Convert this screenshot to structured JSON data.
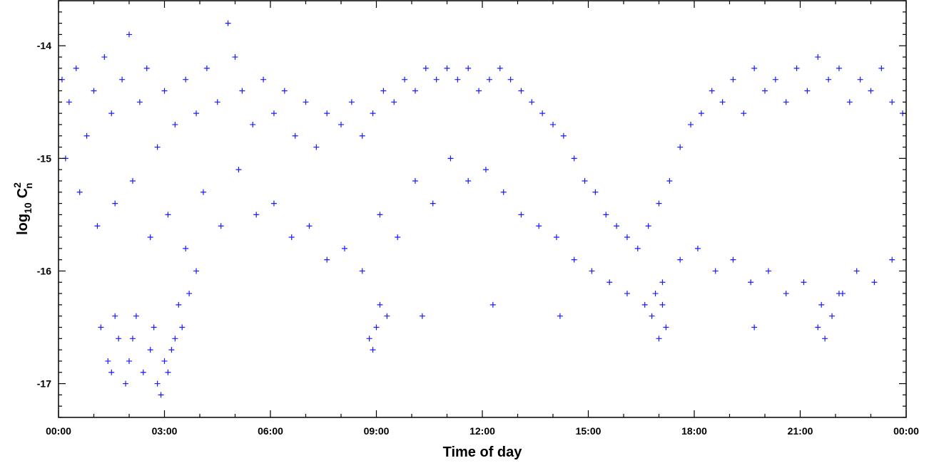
{
  "chart_data": {
    "type": "scatter",
    "title": "",
    "xlabel": "Time of day",
    "ylabel_parts": {
      "base": "log",
      "base_sub": "10",
      "var": "C",
      "var_sup": "2",
      "var_sub": "n"
    },
    "xlim_hours": [
      0,
      24
    ],
    "ylim": [
      -17.3,
      -13.6
    ],
    "x_ticks": [
      {
        "hour": 0,
        "label": "00:00"
      },
      {
        "hour": 3,
        "label": "03:00"
      },
      {
        "hour": 6,
        "label": "06:00"
      },
      {
        "hour": 9,
        "label": "09:00"
      },
      {
        "hour": 12,
        "label": "12:00"
      },
      {
        "hour": 15,
        "label": "15:00"
      },
      {
        "hour": 18,
        "label": "18:00"
      },
      {
        "hour": 21,
        "label": "21:00"
      },
      {
        "hour": 24,
        "label": "00:00"
      }
    ],
    "y_ticks": [
      -14,
      -15,
      -16,
      -17
    ],
    "grid": false,
    "marker": "+",
    "marker_color": "#1a1aff",
    "series": [
      {
        "x_hours": [
          0.1,
          0.3,
          0.5,
          0.8,
          1.0,
          1.3,
          1.5,
          1.8,
          2.0,
          2.3,
          2.5,
          2.8,
          3.0,
          3.3,
          3.6,
          3.9,
          4.2,
          4.5,
          4.8,
          5.0,
          5.2,
          5.5,
          5.8,
          6.1,
          6.4,
          6.7,
          7.0,
          7.3,
          7.6,
          8.0,
          8.3,
          8.6,
          8.9,
          9.2,
          9.5,
          9.8,
          10.1,
          10.4,
          10.7,
          11.0,
          11.3,
          11.6,
          11.9,
          12.2,
          12.5,
          12.8,
          13.1,
          13.4,
          13.7,
          14.0,
          14.3,
          14.6,
          14.9,
          15.2,
          15.5,
          15.8,
          16.1,
          16.4,
          16.7,
          17.0,
          17.3,
          17.6,
          17.9,
          18.2,
          18.5,
          18.8,
          19.1,
          19.4,
          19.7,
          20.0,
          20.3,
          20.6,
          20.9,
          21.2,
          21.5,
          21.8,
          22.1,
          22.4,
          22.7,
          23.0,
          23.3,
          23.6,
          23.9,
          0.2,
          0.6,
          1.1,
          1.6,
          2.1,
          2.6,
          3.1,
          3.6,
          4.1,
          4.6,
          5.1,
          5.6,
          6.1,
          6.6,
          7.1,
          7.6,
          8.1,
          8.6,
          9.1,
          9.6,
          10.1,
          10.6,
          11.1,
          11.6,
          12.1,
          12.6,
          13.1,
          13.6,
          14.1,
          14.6,
          15.1,
          15.6,
          16.1,
          16.6,
          17.1,
          17.6,
          18.1,
          18.6,
          19.1,
          19.6,
          20.1,
          20.6,
          21.1,
          21.6,
          22.1,
          22.6,
          23.1,
          23.6,
          1.2,
          1.5,
          1.7,
          1.9,
          2.0,
          2.2,
          2.4,
          2.6,
          2.8,
          2.9,
          3.0,
          3.1,
          3.2,
          3.4,
          3.5,
          3.7,
          3.9,
          1.4,
          1.6,
          2.1,
          2.7,
          3.3,
          8.8,
          8.9,
          9.0,
          9.1,
          9.3,
          16.8,
          16.9,
          17.0,
          17.1,
          17.2,
          21.5,
          21.7,
          21.9,
          22.2,
          19.7,
          12.3,
          14.2,
          10.3
        ],
        "y": [
          -14.3,
          -14.5,
          -14.2,
          -14.8,
          -14.4,
          -14.1,
          -14.6,
          -14.3,
          -13.9,
          -14.5,
          -14.2,
          -14.9,
          -14.4,
          -14.7,
          -14.3,
          -14.6,
          -14.2,
          -14.5,
          -13.8,
          -14.1,
          -14.4,
          -14.7,
          -14.3,
          -14.6,
          -14.4,
          -14.8,
          -14.5,
          -14.9,
          -14.6,
          -14.7,
          -14.5,
          -14.8,
          -14.6,
          -14.4,
          -14.5,
          -14.3,
          -14.4,
          -14.2,
          -14.3,
          -14.2,
          -14.3,
          -14.2,
          -14.4,
          -14.3,
          -14.2,
          -14.3,
          -14.4,
          -14.5,
          -14.6,
          -14.7,
          -14.8,
          -15.0,
          -15.2,
          -15.3,
          -15.5,
          -15.6,
          -15.7,
          -15.8,
          -15.6,
          -15.4,
          -15.2,
          -14.9,
          -14.7,
          -14.6,
          -14.4,
          -14.5,
          -14.3,
          -14.6,
          -14.2,
          -14.4,
          -14.3,
          -14.5,
          -14.2,
          -14.4,
          -14.1,
          -14.3,
          -14.2,
          -14.5,
          -14.3,
          -14.4,
          -14.2,
          -14.5,
          -14.6,
          -15.0,
          -15.3,
          -15.6,
          -15.4,
          -15.2,
          -15.7,
          -15.5,
          -15.8,
          -15.3,
          -15.6,
          -15.1,
          -15.5,
          -15.4,
          -15.7,
          -15.6,
          -15.9,
          -15.8,
          -16.0,
          -15.5,
          -15.7,
          -15.2,
          -15.4,
          -15.0,
          -15.2,
          -15.1,
          -15.3,
          -15.5,
          -15.6,
          -15.7,
          -15.9,
          -16.0,
          -16.1,
          -16.2,
          -16.3,
          -16.1,
          -15.9,
          -15.8,
          -16.0,
          -15.9,
          -16.1,
          -16.0,
          -16.2,
          -16.1,
          -16.3,
          -16.2,
          -16.0,
          -16.1,
          -15.9,
          -16.5,
          -16.9,
          -16.6,
          -17.0,
          -16.8,
          -16.4,
          -16.9,
          -16.7,
          -17.0,
          -17.1,
          -16.8,
          -16.9,
          -16.7,
          -16.3,
          -16.5,
          -16.2,
          -16.0,
          -16.8,
          -16.4,
          -16.6,
          -16.5,
          -16.6,
          -16.6,
          -16.7,
          -16.5,
          -16.3,
          -16.4,
          -16.4,
          -16.2,
          -16.6,
          -16.3,
          -16.5,
          -16.5,
          -16.6,
          -16.4,
          -16.2,
          -16.5,
          -16.3,
          -16.4,
          -16.4
        ]
      }
    ]
  }
}
